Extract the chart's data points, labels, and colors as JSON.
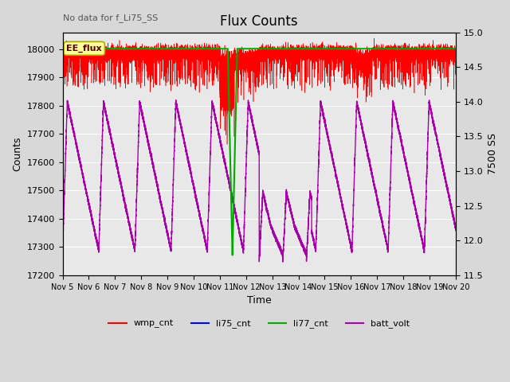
{
  "title": "Flux Counts",
  "xlabel": "Time",
  "ylabel_left": "Counts",
  "ylabel_right": "7500 SS",
  "annotation_text": "No data for f_Li75_SS",
  "ee_flux_label": "EE_flux",
  "ylim_left": [
    17200,
    18060
  ],
  "ylim_right": [
    11.5,
    15.0
  ],
  "x_tick_labels": [
    "Nov 5",
    "Nov 6",
    "Nov 7",
    "Nov 8",
    "Nov 9",
    "Nov 10",
    "Nov 11",
    "Nov 12",
    "Nov 13",
    "Nov 14",
    "Nov 15",
    "Nov 16",
    "Nov 17",
    "Nov 18",
    "Nov 19",
    "Nov 20"
  ],
  "legend_entries": [
    {
      "label": "wmp_cnt",
      "color": "#ff0000"
    },
    {
      "label": "li75_cnt",
      "color": "#0000ff"
    },
    {
      "label": "li77_cnt",
      "color": "#00aa00"
    },
    {
      "label": "batt_volt",
      "color": "#aa00aa"
    }
  ],
  "background_color": "#d8d8d8",
  "plot_bg_color": "#e8e8e8",
  "ee_flux_box_color": "#ffff99",
  "ee_flux_box_edge": "#aaaa00"
}
